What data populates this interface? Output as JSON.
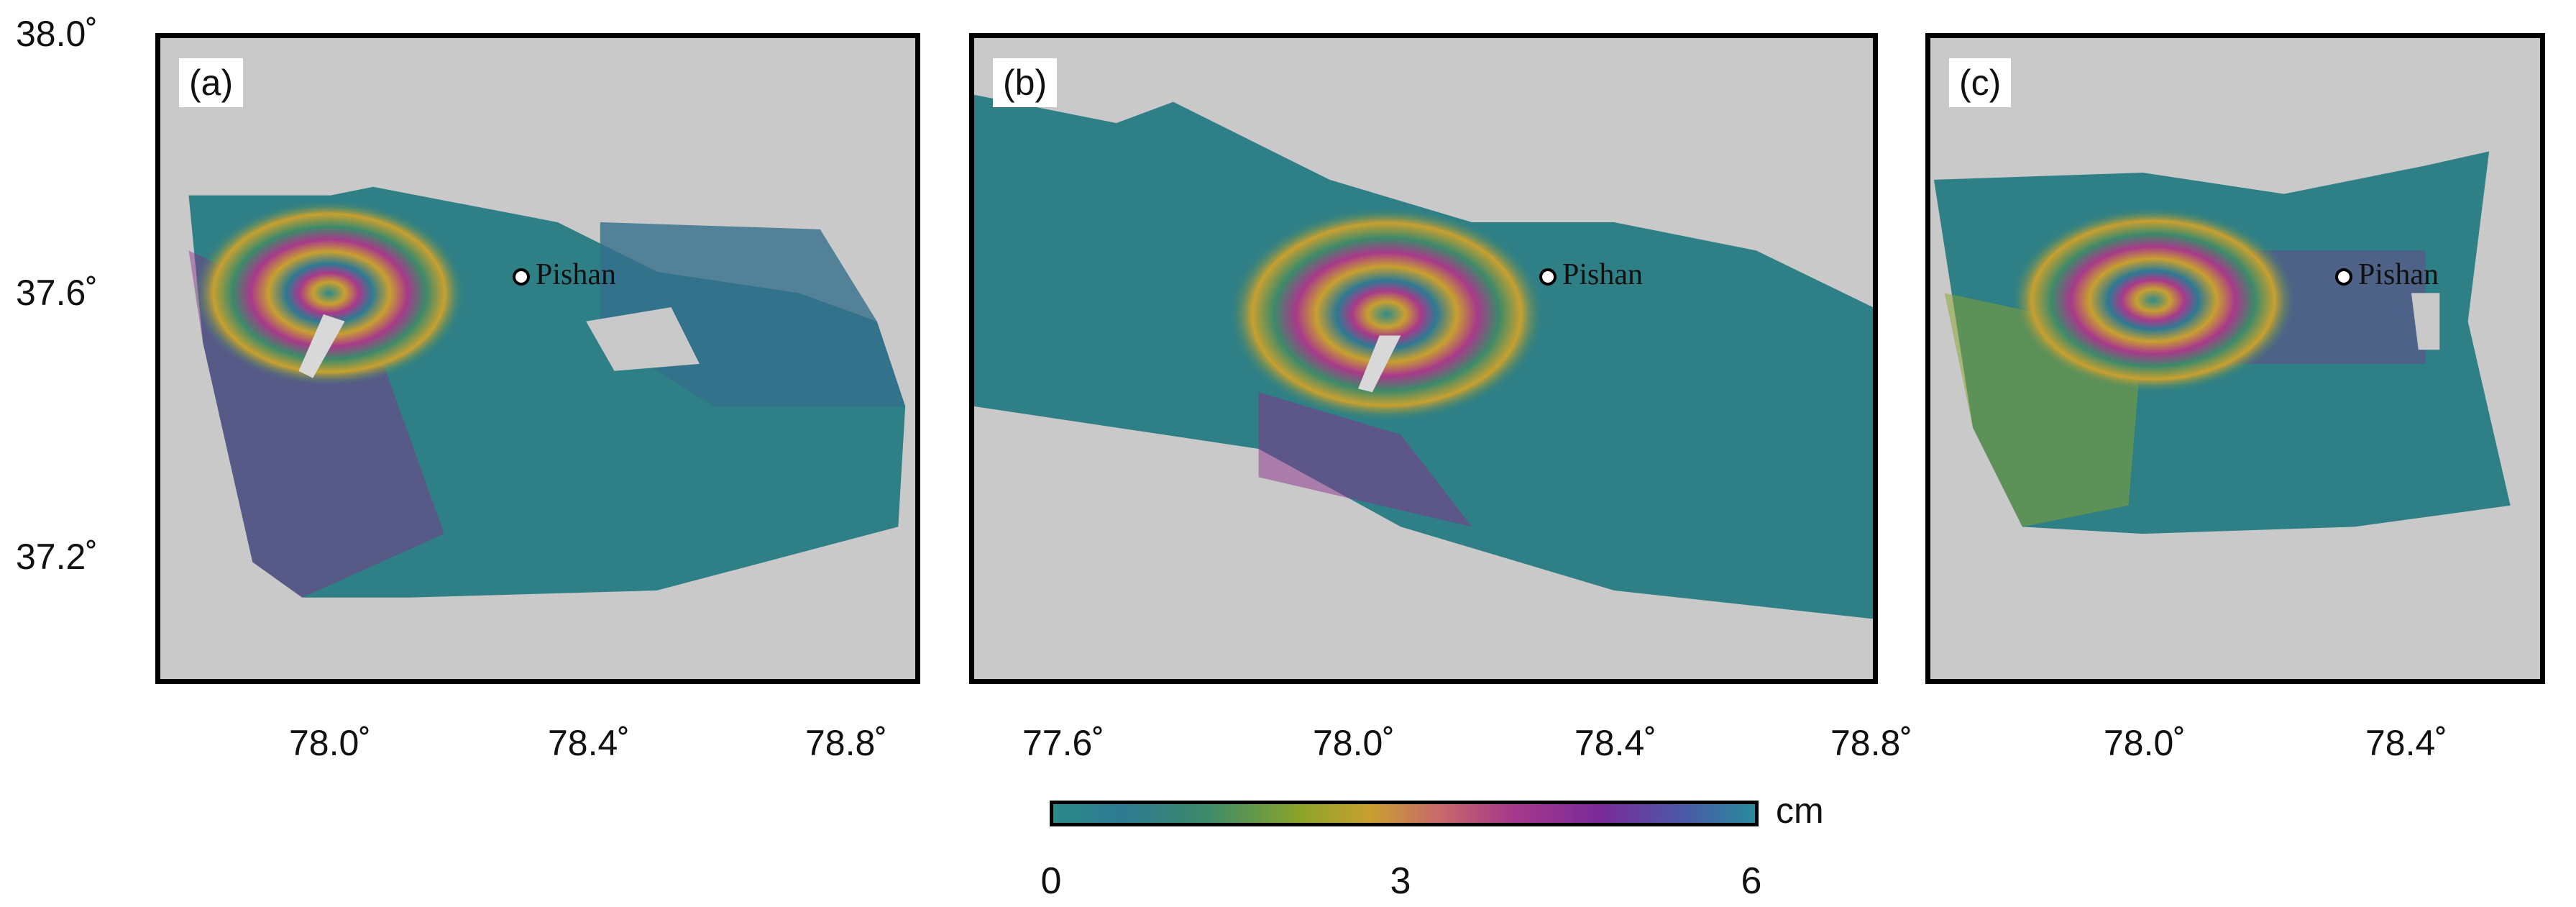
{
  "panels": [
    {
      "label": "(a)",
      "town": "Pishan"
    },
    {
      "label": "(b)",
      "town": "Pishan"
    },
    {
      "label": "(c)",
      "town": "Pishan"
    }
  ],
  "axes": {
    "lat_ticks": [
      "38.0˚",
      "37.6˚",
      "37.2˚"
    ],
    "lon_ticks_a": [
      "78.0˚",
      "78.4˚",
      "78.8˚"
    ],
    "lon_ticks_b": [
      "77.6˚",
      "78.0˚",
      "78.4˚",
      "78.8˚"
    ],
    "lon_ticks_c": [
      "78.0˚",
      "78.4˚"
    ]
  },
  "colorbar": {
    "min": "0",
    "mid": "3",
    "max": "6",
    "unit": "cm",
    "colors": [
      "#2a8a8a",
      "#8aa42a",
      "#c86a6a",
      "#7a2a9a",
      "#2a8a9a"
    ]
  }
}
